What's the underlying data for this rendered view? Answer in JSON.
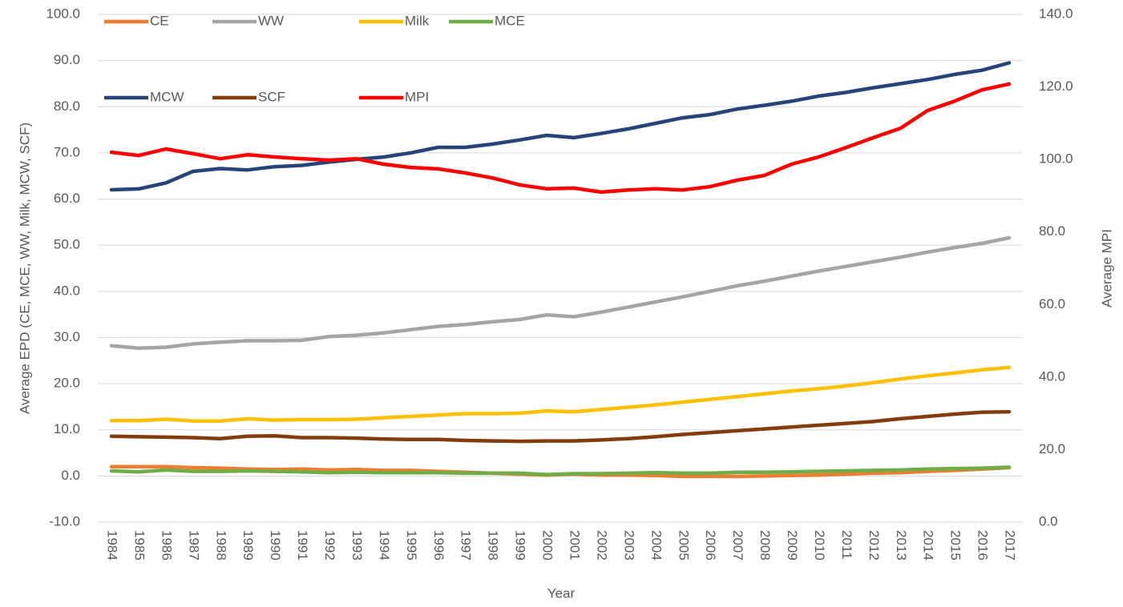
{
  "chart_data": {
    "type": "line",
    "categories": [
      "1984",
      "1985",
      "1986",
      "1987",
      "1988",
      "1989",
      "1990",
      "1991",
      "1992",
      "1993",
      "1994",
      "1995",
      "1996",
      "1997",
      "1998",
      "1999",
      "2000",
      "2001",
      "2002",
      "2003",
      "2004",
      "2005",
      "2006",
      "2007",
      "2008",
      "2009",
      "2010",
      "2011",
      "2012",
      "2013",
      "2014",
      "2015",
      "2016",
      "2017"
    ],
    "x_label": "Year",
    "y_label": "Average EPD (CE, MCE, WW, Milk, MCW, SCF)",
    "y2_label": "Average MPI",
    "ylim": [
      -10,
      100
    ],
    "yticks": [
      {
        "value": -10,
        "label": "-10.0"
      },
      {
        "value": 0,
        "label": "0.0"
      },
      {
        "value": 10,
        "label": "10.0"
      },
      {
        "value": 20,
        "label": "20.0"
      },
      {
        "value": 30,
        "label": "30.0"
      },
      {
        "value": 40,
        "label": "40.0"
      },
      {
        "value": 50,
        "label": "50.0"
      },
      {
        "value": 60,
        "label": "60.0"
      },
      {
        "value": 70,
        "label": "70.0"
      },
      {
        "value": 80,
        "label": "80.0"
      },
      {
        "value": 90,
        "label": "90.0"
      },
      {
        "value": 100,
        "label": "100.0"
      }
    ],
    "y2lim": [
      0,
      140
    ],
    "y2ticks": [
      {
        "value": 0,
        "label": "0.0"
      },
      {
        "value": 20,
        "label": "20.0"
      },
      {
        "value": 40,
        "label": "40.0"
      },
      {
        "value": 60,
        "label": "60.0"
      },
      {
        "value": 80,
        "label": "80.0"
      },
      {
        "value": 100,
        "label": "100.0"
      },
      {
        "value": 120,
        "label": "120.0"
      },
      {
        "value": 140,
        "label": "140.0"
      }
    ],
    "grid": true,
    "legend": "top",
    "series": [
      {
        "name": "CE",
        "color": "#ed7d31",
        "values": [
          2.0,
          2.0,
          2.0,
          1.8,
          1.7,
          1.5,
          1.4,
          1.5,
          1.3,
          1.4,
          1.2,
          1.2,
          1.0,
          0.8,
          0.6,
          0.4,
          0.2,
          0.4,
          0.2,
          0.2,
          0.1,
          -0.1,
          -0.1,
          -0.1,
          0.0,
          0.1,
          0.2,
          0.4,
          0.6,
          0.7,
          1.0,
          1.2,
          1.5,
          1.8
        ]
      },
      {
        "name": "WW",
        "color": "#a5a5a5",
        "values": [
          28.2,
          27.7,
          27.9,
          28.6,
          29.0,
          29.3,
          29.3,
          29.4,
          30.2,
          30.5,
          31.0,
          31.7,
          32.4,
          32.8,
          33.4,
          33.9,
          34.9,
          34.5,
          35.5,
          36.6,
          37.7,
          38.8,
          40.0,
          41.2,
          42.2,
          43.3,
          44.4,
          45.4,
          46.4,
          47.4,
          48.5,
          49.5,
          50.4,
          51.6
        ]
      },
      {
        "name": "Milk",
        "color": "#ffc000",
        "values": [
          12.0,
          12.0,
          12.3,
          11.9,
          11.9,
          12.4,
          12.1,
          12.2,
          12.2,
          12.3,
          12.6,
          12.9,
          13.2,
          13.5,
          13.5,
          13.6,
          14.1,
          13.9,
          14.4,
          14.9,
          15.4,
          16.0,
          16.6,
          17.2,
          17.8,
          18.4,
          18.9,
          19.5,
          20.2,
          21.0,
          21.7,
          22.3,
          23.0,
          23.5
        ]
      },
      {
        "name": "MCE",
        "color": "#70ad47",
        "values": [
          1.1,
          0.9,
          1.3,
          1.0,
          1.0,
          1.1,
          1.0,
          0.9,
          0.7,
          0.8,
          0.7,
          0.7,
          0.7,
          0.6,
          0.6,
          0.6,
          0.3,
          0.5,
          0.5,
          0.6,
          0.7,
          0.6,
          0.6,
          0.8,
          0.8,
          0.9,
          1.0,
          1.1,
          1.2,
          1.3,
          1.5,
          1.6,
          1.7,
          1.9
        ]
      },
      {
        "name": "MCW",
        "color": "#264478",
        "values": [
          62.0,
          62.2,
          63.5,
          66.0,
          66.6,
          66.3,
          67.0,
          67.3,
          68.0,
          68.6,
          69.1,
          70.0,
          71.2,
          71.2,
          71.9,
          72.8,
          73.8,
          73.3,
          74.2,
          75.2,
          76.4,
          77.6,
          78.3,
          79.5,
          80.3,
          81.2,
          82.3,
          83.1,
          84.1,
          85.0,
          85.9,
          87.0,
          87.9,
          89.5
        ]
      },
      {
        "name": "SCF",
        "color": "#843c0c",
        "values": [
          8.6,
          8.5,
          8.4,
          8.3,
          8.1,
          8.6,
          8.7,
          8.3,
          8.3,
          8.2,
          8.0,
          7.9,
          7.9,
          7.7,
          7.6,
          7.5,
          7.6,
          7.6,
          7.8,
          8.1,
          8.5,
          9.0,
          9.4,
          9.8,
          10.2,
          10.6,
          11.0,
          11.4,
          11.8,
          12.4,
          12.9,
          13.4,
          13.8,
          13.9
        ]
      },
      {
        "name": "MPI",
        "color": "#ff0000",
        "axis": "y2",
        "values": [
          102.0,
          101.1,
          102.9,
          101.6,
          100.2,
          101.3,
          100.7,
          100.2,
          99.8,
          100.2,
          98.7,
          97.8,
          97.4,
          96.3,
          94.9,
          93.0,
          91.9,
          92.1,
          91.0,
          91.6,
          91.9,
          91.6,
          92.5,
          94.3,
          95.6,
          98.7,
          100.7,
          103.3,
          106.0,
          108.6,
          113.5,
          116.1,
          119.2,
          120.8
        ]
      }
    ]
  }
}
